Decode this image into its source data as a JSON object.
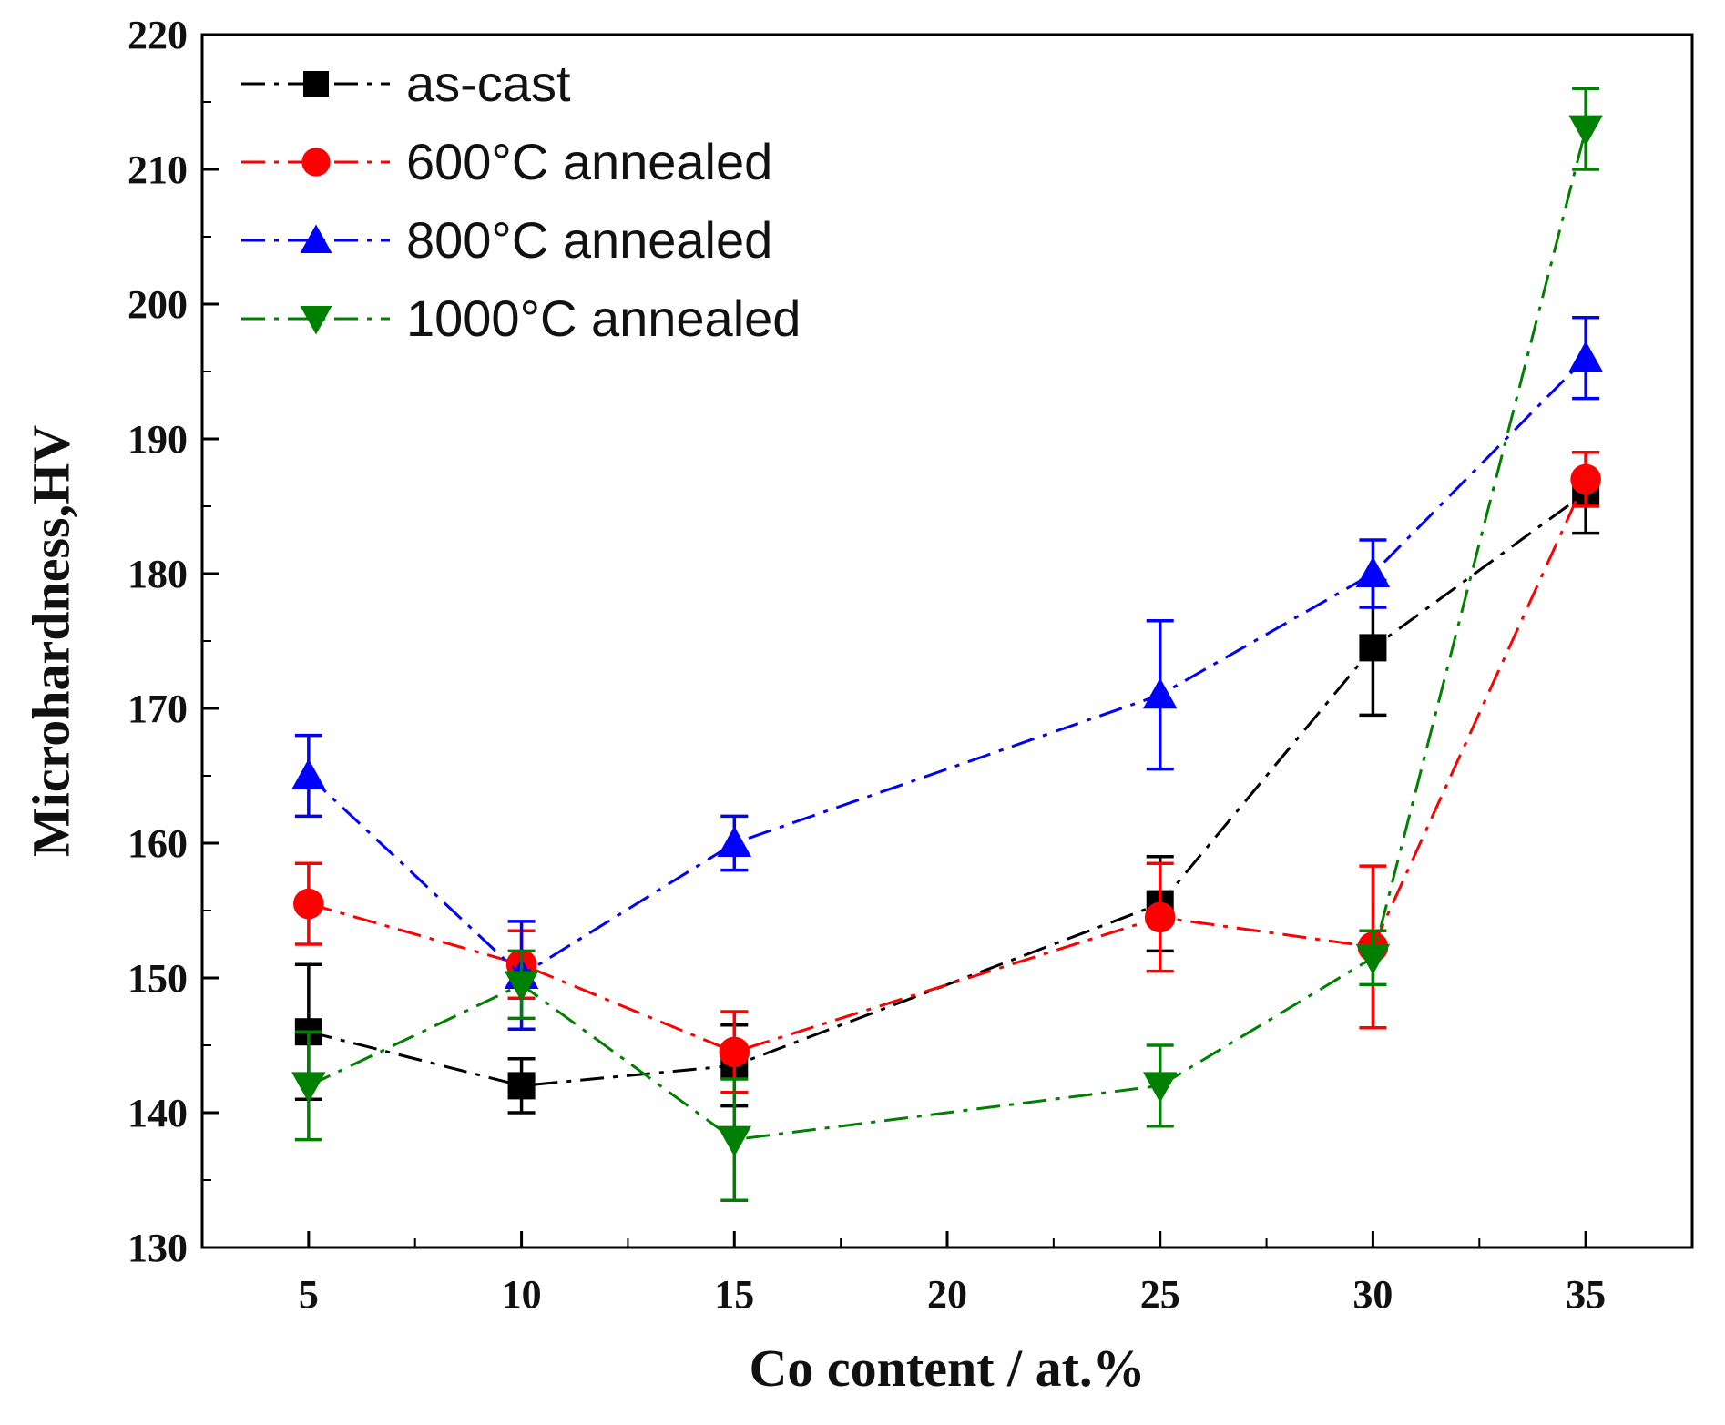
{
  "chart_data": {
    "type": "line",
    "xlabel": "Co content / at.%",
    "ylabel": "Microhardness,HV",
    "xlim": [
      2.5,
      37.5
    ],
    "ylim": [
      130,
      220
    ],
    "xticks": [
      5,
      10,
      15,
      20,
      25,
      30,
      35
    ],
    "yticks": [
      130,
      140,
      150,
      160,
      170,
      180,
      190,
      200,
      210,
      220
    ],
    "legend_position": "top-left",
    "series": [
      {
        "name": "as-cast",
        "color": "#000000",
        "marker": "square",
        "x": [
          5,
          10,
          15,
          25,
          30,
          35
        ],
        "y": [
          146,
          142,
          143.5,
          155.5,
          174.5,
          186
        ],
        "err": [
          5,
          2,
          3,
          3.5,
          5,
          3
        ]
      },
      {
        "name": "600°C annealed",
        "color": "#ff0000",
        "marker": "circle",
        "x": [
          5,
          10,
          15,
          25,
          30,
          35
        ],
        "y": [
          155.5,
          151,
          144.5,
          154.5,
          152.3,
          187
        ],
        "err": [
          3,
          2.5,
          3,
          4,
          6,
          2
        ]
      },
      {
        "name": "800°C annealed",
        "color": "#0000ff",
        "marker": "triangle-up",
        "x": [
          5,
          10,
          15,
          25,
          30,
          35
        ],
        "y": [
          165,
          150.2,
          160,
          171,
          180,
          196
        ],
        "err": [
          3,
          4,
          2,
          5.5,
          2.5,
          3
        ]
      },
      {
        "name": "1000°C annealed",
        "color": "#008000",
        "marker": "triangle-down",
        "x": [
          5,
          10,
          15,
          25,
          30,
          35
        ],
        "y": [
          142,
          149.5,
          138,
          142,
          151.5,
          213
        ],
        "err": [
          4,
          2.5,
          4.5,
          3,
          2,
          3
        ]
      }
    ]
  }
}
